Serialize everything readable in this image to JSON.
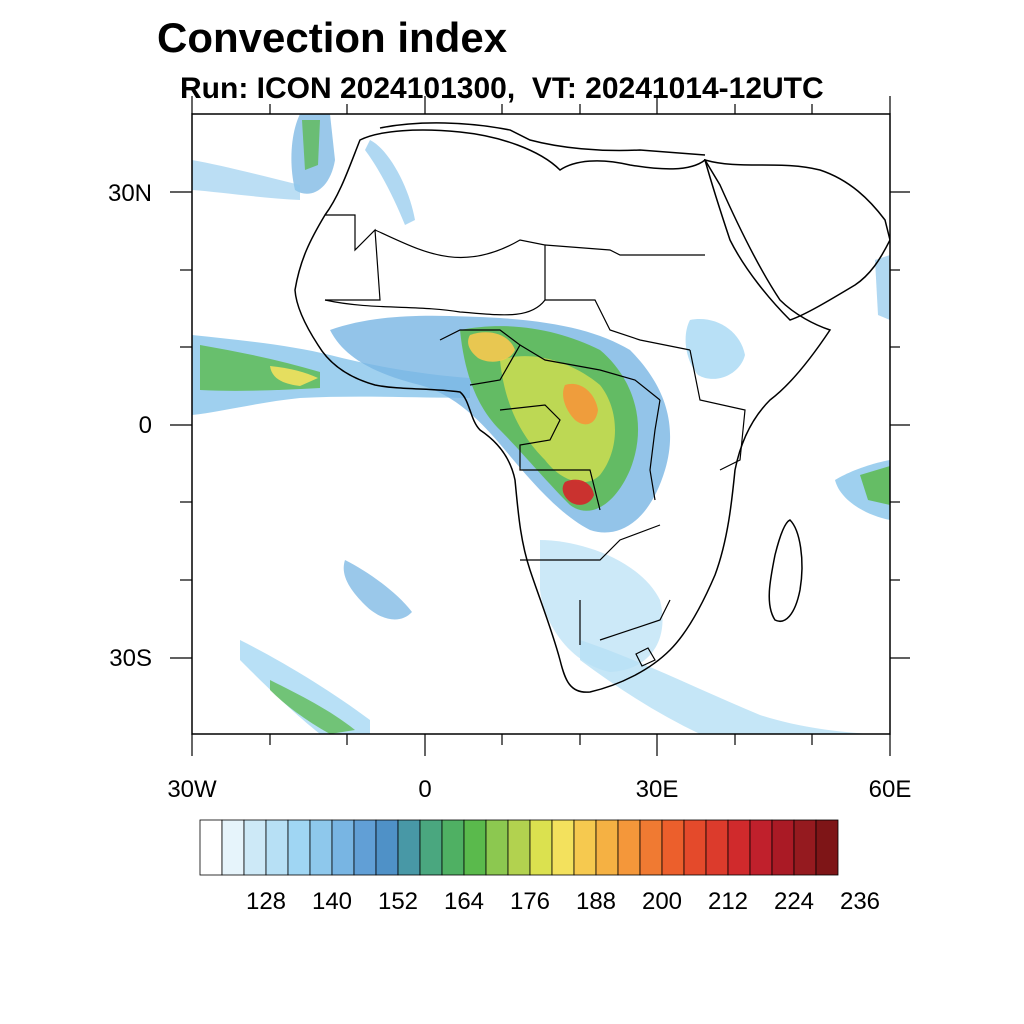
{
  "title": "Convection index",
  "subtitle": "Run: ICON 2024101300,  VT: 20241014-12UTC",
  "map": {
    "lon_range": [
      -30,
      60
    ],
    "lat_range": [
      -40,
      40
    ],
    "x_tick_labels": [
      "30W",
      "0",
      "30E",
      "60E"
    ],
    "y_tick_labels": [
      "30N",
      "0",
      "30S"
    ],
    "field": "convection index"
  },
  "colorbar": {
    "labels": [
      "128",
      "140",
      "152",
      "164",
      "176",
      "188",
      "200",
      "212",
      "224",
      "236"
    ],
    "colors": [
      "#ffffff",
      "#e6f4fb",
      "#cde9f7",
      "#b7e0f5",
      "#a0d6f3",
      "#8ec8ec",
      "#78b5e3",
      "#619fd6",
      "#4f91c7",
      "#4898a6",
      "#4aa77f",
      "#4fb063",
      "#5aba4c",
      "#8cc850",
      "#b2d24f",
      "#dbe14f",
      "#f3e15d",
      "#f6c94f",
      "#f5b143",
      "#f4973a",
      "#f07a32",
      "#ec5f2c",
      "#e44a2b",
      "#dc3b2c",
      "#d02a2c",
      "#c0202c",
      "#aa1a25",
      "#951a1f",
      "#7e1517"
    ]
  }
}
